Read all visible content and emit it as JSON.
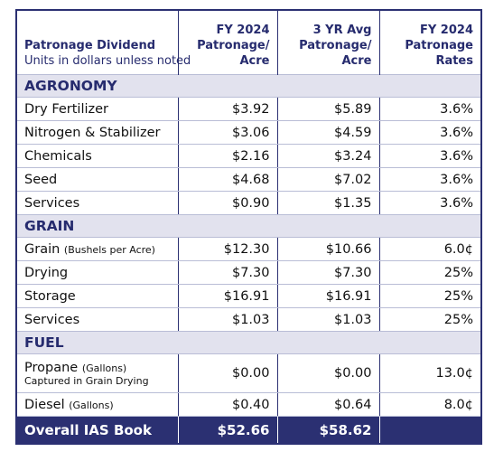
{
  "table": {
    "header": {
      "title": "Patronage Dividend",
      "subtitle": "Units in dollars unless noted",
      "columns": [
        [
          "FY 2024",
          "Patronage/",
          "Acre"
        ],
        [
          "3 YR Avg",
          "Patronage/",
          "Acre"
        ],
        [
          "FY 2024",
          "Patronage",
          "Rates"
        ]
      ]
    },
    "sections": [
      {
        "name": "AGRONOMY",
        "rows": [
          {
            "label": "Dry Fertilizer",
            "values": [
              "$3.92",
              "$5.89",
              "3.6%"
            ]
          },
          {
            "label": "Nitrogen & Stabilizer",
            "values": [
              "$3.06",
              "$4.59",
              "3.6%"
            ]
          },
          {
            "label": "Chemicals",
            "values": [
              "$2.16",
              "$3.24",
              "3.6%"
            ]
          },
          {
            "label": "Seed",
            "values": [
              "$4.68",
              "$7.02",
              "3.6%"
            ]
          },
          {
            "label": "Services",
            "values": [
              "$0.90",
              "$1.35",
              "3.6%"
            ]
          }
        ]
      },
      {
        "name": "GRAIN",
        "rows": [
          {
            "label": "Grain",
            "note": "(Bushels per Acre)",
            "values": [
              "$12.30",
              "$10.66",
              "6.0¢"
            ]
          },
          {
            "label": "Drying",
            "values": [
              "$7.30",
              "$7.30",
              "25%"
            ]
          },
          {
            "label": "Storage",
            "values": [
              "$16.91",
              "$16.91",
              "25%"
            ]
          },
          {
            "label": "Services",
            "values": [
              "$1.03",
              "$1.03",
              "25%"
            ]
          }
        ]
      },
      {
        "name": "FUEL",
        "rows": [
          {
            "label": "Propane",
            "note": "(Gallons)",
            "subnote": "Captured in Grain Drying",
            "values": [
              "$0.00",
              "$0.00",
              "13.0¢"
            ]
          },
          {
            "label": "Diesel",
            "note": "(Gallons)",
            "values": [
              "$0.40",
              "$0.64",
              "8.0¢"
            ]
          }
        ]
      }
    ],
    "footer": {
      "label": "Overall IAS Book",
      "values": [
        "$52.66",
        "$58.62"
      ]
    }
  }
}
